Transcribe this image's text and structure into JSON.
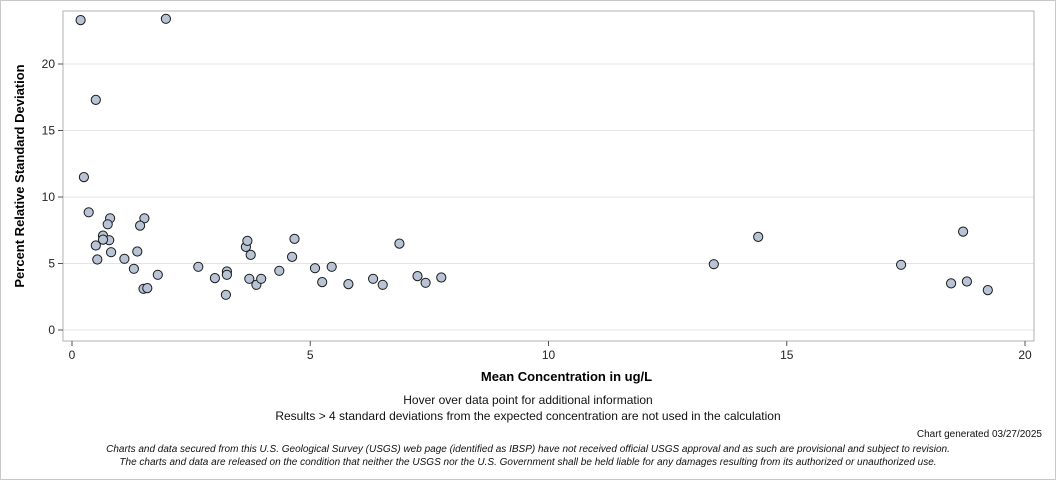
{
  "chart_data": {
    "type": "scatter",
    "xlabel": "Mean Concentration in ug/L",
    "ylabel": "Percent Relative Standard Deviation",
    "xlim": [
      0,
      20
    ],
    "ylim": [
      0,
      23
    ],
    "xticks": [
      0,
      5,
      10,
      15,
      20
    ],
    "yticks": [
      0,
      5,
      10,
      15,
      20
    ],
    "grid": true,
    "marker_fill": "#b8c4d6",
    "marker_edge": "#1a1a1a",
    "points": [
      {
        "x": 0.18,
        "y": 23.3
      },
      {
        "x": 1.97,
        "y": 23.4
      },
      {
        "x": 0.5,
        "y": 17.3
      },
      {
        "x": 0.25,
        "y": 11.5
      },
      {
        "x": 0.35,
        "y": 8.85
      },
      {
        "x": 0.8,
        "y": 8.4
      },
      {
        "x": 1.52,
        "y": 8.4
      },
      {
        "x": 0.75,
        "y": 7.95
      },
      {
        "x": 1.43,
        "y": 7.85
      },
      {
        "x": 0.65,
        "y": 7.1
      },
      {
        "x": 0.78,
        "y": 6.75
      },
      {
        "x": 0.65,
        "y": 6.8
      },
      {
        "x": 0.5,
        "y": 6.35
      },
      {
        "x": 1.37,
        "y": 5.9
      },
      {
        "x": 0.82,
        "y": 5.85
      },
      {
        "x": 0.53,
        "y": 5.3
      },
      {
        "x": 1.1,
        "y": 5.35
      },
      {
        "x": 1.3,
        "y": 4.6
      },
      {
        "x": 1.8,
        "y": 4.15
      },
      {
        "x": 1.5,
        "y": 3.1
      },
      {
        "x": 1.58,
        "y": 3.15
      },
      {
        "x": 2.65,
        "y": 4.75
      },
      {
        "x": 3.0,
        "y": 3.9
      },
      {
        "x": 3.25,
        "y": 4.4
      },
      {
        "x": 3.25,
        "y": 4.15
      },
      {
        "x": 3.23,
        "y": 2.65
      },
      {
        "x": 3.65,
        "y": 6.25
      },
      {
        "x": 3.68,
        "y": 6.7
      },
      {
        "x": 3.75,
        "y": 5.65
      },
      {
        "x": 3.72,
        "y": 3.85
      },
      {
        "x": 3.87,
        "y": 3.4
      },
      {
        "x": 3.97,
        "y": 3.85
      },
      {
        "x": 4.35,
        "y": 4.45
      },
      {
        "x": 4.62,
        "y": 5.5
      },
      {
        "x": 4.67,
        "y": 6.85
      },
      {
        "x": 5.1,
        "y": 4.65
      },
      {
        "x": 5.25,
        "y": 3.6
      },
      {
        "x": 5.45,
        "y": 4.75
      },
      {
        "x": 5.8,
        "y": 3.45
      },
      {
        "x": 6.32,
        "y": 3.85
      },
      {
        "x": 6.52,
        "y": 3.4
      },
      {
        "x": 6.87,
        "y": 6.5
      },
      {
        "x": 7.25,
        "y": 4.05
      },
      {
        "x": 7.42,
        "y": 3.55
      },
      {
        "x": 7.75,
        "y": 3.95
      },
      {
        "x": 13.47,
        "y": 4.95
      },
      {
        "x": 14.4,
        "y": 7.0
      },
      {
        "x": 17.4,
        "y": 4.9
      },
      {
        "x": 18.45,
        "y": 3.5
      },
      {
        "x": 18.7,
        "y": 7.4
      },
      {
        "x": 18.78,
        "y": 3.65
      },
      {
        "x": 19.22,
        "y": 3.0
      }
    ]
  },
  "notes": {
    "hover": "Hover over data point for additional information",
    "results": "Results > 4 standard deviations from the expected concentration are not used in the calculation"
  },
  "generated": "Chart generated 03/27/2025",
  "disclaimer": {
    "line1": "Charts and data secured from this U.S. Geological Survey (USGS) web page (identified as IBSP) have not received official USGS approval and as such are provisional and subject to revision.",
    "line2": "The charts and data are released on the condition that neither the USGS nor the U.S. Government shall be held liable for any damages resulting from its authorized or unauthorized use."
  }
}
